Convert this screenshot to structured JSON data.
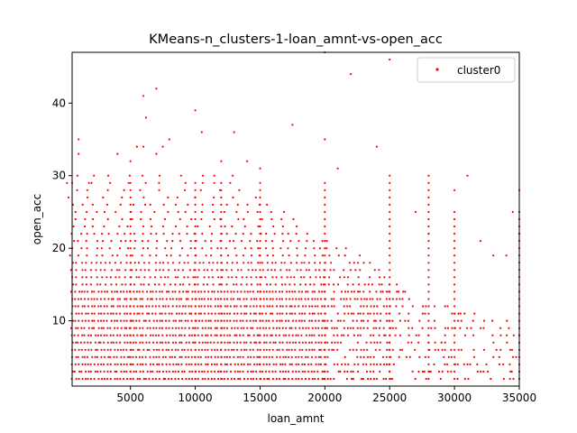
{
  "chart_data": {
    "type": "scatter",
    "title": "KMeans-n_clusters-1-loan_amnt-vs-open_acc",
    "xlabel": "loan_amnt",
    "ylabel": "open_acc",
    "xlim": [
      500,
      35000
    ],
    "ylim": [
      1,
      47
    ],
    "xticks": [
      5000,
      10000,
      15000,
      20000,
      25000,
      30000,
      35000
    ],
    "xtick_labels": [
      "5000",
      "10000",
      "15000",
      "20000",
      "25000",
      "30000",
      "35000"
    ],
    "yticks": [
      10,
      20,
      30,
      40
    ],
    "ytick_labels": [
      "10",
      "20",
      "30",
      "40"
    ],
    "grid": false,
    "legend": {
      "position": "top-right",
      "entries": [
        "cluster0"
      ]
    },
    "series": [
      {
        "name": "cluster0",
        "color": "#ff0000",
        "dense_region": {
          "description": "dense grid of points at integer open_acc values across the loan_amnt range",
          "x_min": 500,
          "x_max_by_open_acc": [
            [
              2,
              35000
            ],
            [
              10,
              35000
            ],
            [
              13,
              27000
            ],
            [
              16,
              25000
            ],
            [
              19,
              23000
            ],
            [
              22,
              19000
            ],
            [
              25,
              17000
            ],
            [
              28,
              14000
            ]
          ],
          "open_acc_min": 2
        },
        "outliers": [
          [
            1000,
            35
          ],
          [
            1000,
            33
          ],
          [
            500,
            29
          ],
          [
            2000,
            29
          ],
          [
            4000,
            33
          ],
          [
            5000,
            32
          ],
          [
            5500,
            34
          ],
          [
            6000,
            34
          ],
          [
            6000,
            41
          ],
          [
            6200,
            38
          ],
          [
            7000,
            42
          ],
          [
            7000,
            33
          ],
          [
            7500,
            34
          ],
          [
            8000,
            35
          ],
          [
            10000,
            39
          ],
          [
            10500,
            36
          ],
          [
            12000,
            32
          ],
          [
            13000,
            36
          ],
          [
            14000,
            32
          ],
          [
            15000,
            31
          ],
          [
            17500,
            37
          ],
          [
            20000,
            35
          ],
          [
            20000,
            47
          ],
          [
            21000,
            31
          ],
          [
            22000,
            44
          ],
          [
            24000,
            34
          ],
          [
            25000,
            46
          ],
          [
            27000,
            25
          ],
          [
            28000,
            22
          ],
          [
            30000,
            28
          ],
          [
            31000,
            30
          ],
          [
            32000,
            21
          ],
          [
            33000,
            19
          ],
          [
            34000,
            19
          ],
          [
            28000,
            7
          ],
          [
            31000,
            4
          ],
          [
            33000,
            5
          ],
          [
            34500,
            25
          ],
          [
            35000,
            28
          ],
          [
            35000,
            22
          ]
        ]
      }
    ]
  }
}
